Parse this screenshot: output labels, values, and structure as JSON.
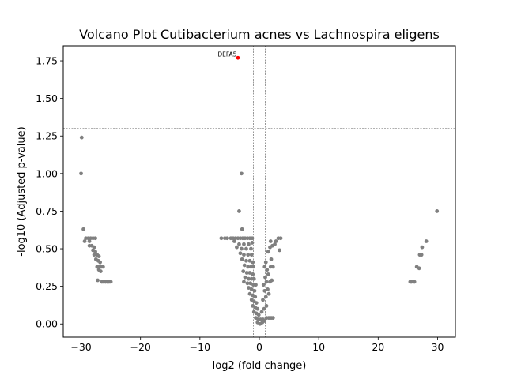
{
  "chart_data": {
    "type": "scatter",
    "title": "Volcano Plot Cutibacterium acnes vs Lachnospira eligens",
    "xlabel": "log2 (fold change)",
    "ylabel": "-log10 (Adjusted p-value)",
    "xlim": [
      -33,
      33
    ],
    "ylim": [
      -0.088,
      1.85
    ],
    "xticks": [
      -30,
      -20,
      -10,
      0,
      10,
      20,
      30
    ],
    "xtick_labels": [
      "−30",
      "−20",
      "−10",
      "0",
      "10",
      "20",
      "30"
    ],
    "yticks": [
      0.0,
      0.25,
      0.5,
      0.75,
      1.0,
      1.25,
      1.5,
      1.75
    ],
    "ytick_labels": [
      "0.00",
      "0.25",
      "0.50",
      "0.75",
      "1.00",
      "1.25",
      "1.50",
      "1.75"
    ],
    "grid": false,
    "colors": {
      "default": "#808080",
      "significant": "#ff0000",
      "threshold_line": "#808080"
    },
    "threshold_lines": {
      "vertical": [
        -1,
        1
      ],
      "horizontal": [
        1.3
      ]
    },
    "series": [
      {
        "color": "#808080",
        "points": [
          [
            -29.9,
            1.24
          ],
          [
            -30.0,
            1.0
          ],
          [
            -29.6,
            0.63
          ],
          [
            -29.2,
            0.57
          ],
          [
            -28.8,
            0.57
          ],
          [
            -28.4,
            0.57
          ],
          [
            -28.0,
            0.57
          ],
          [
            -27.6,
            0.57
          ],
          [
            -29.4,
            0.55
          ],
          [
            -28.6,
            0.55
          ],
          [
            -28.6,
            0.52
          ],
          [
            -28.2,
            0.52
          ],
          [
            -27.8,
            0.51
          ],
          [
            -28.0,
            0.49
          ],
          [
            -27.6,
            0.48
          ],
          [
            -27.8,
            0.46
          ],
          [
            -27.3,
            0.46
          ],
          [
            -27.0,
            0.45
          ],
          [
            -27.5,
            0.43
          ],
          [
            -27.1,
            0.42
          ],
          [
            -26.8,
            0.41
          ],
          [
            -27.3,
            0.38
          ],
          [
            -26.9,
            0.38
          ],
          [
            -26.6,
            0.38
          ],
          [
            -26.3,
            0.38
          ],
          [
            -27.0,
            0.36
          ],
          [
            -26.7,
            0.35
          ],
          [
            -27.2,
            0.29
          ],
          [
            -26.5,
            0.28
          ],
          [
            -26.2,
            0.28
          ],
          [
            -25.9,
            0.28
          ],
          [
            -25.6,
            0.28
          ],
          [
            -25.3,
            0.28
          ],
          [
            -25.0,
            0.28
          ],
          [
            -6.4,
            0.57
          ],
          [
            -5.8,
            0.57
          ],
          [
            -5.4,
            0.57
          ],
          [
            -4.8,
            0.57
          ],
          [
            -4.4,
            0.57
          ],
          [
            -4.0,
            0.57
          ],
          [
            -3.6,
            0.57
          ],
          [
            -3.2,
            0.57
          ],
          [
            -2.8,
            0.57
          ],
          [
            -2.4,
            0.57
          ],
          [
            -2.0,
            0.57
          ],
          [
            -1.6,
            0.57
          ],
          [
            -1.2,
            0.57
          ],
          [
            -3.0,
            1.0
          ],
          [
            -3.4,
            0.75
          ],
          [
            -2.9,
            0.63
          ],
          [
            -4.2,
            0.55
          ],
          [
            -3.4,
            0.53
          ],
          [
            -2.6,
            0.53
          ],
          [
            -1.8,
            0.53
          ],
          [
            -1.2,
            0.54
          ],
          [
            -3.8,
            0.51
          ],
          [
            -3.0,
            0.5
          ],
          [
            -2.2,
            0.5
          ],
          [
            -1.4,
            0.5
          ],
          [
            -3.2,
            0.47
          ],
          [
            -2.6,
            0.46
          ],
          [
            -1.9,
            0.46
          ],
          [
            -1.3,
            0.46
          ],
          [
            -2.9,
            0.43
          ],
          [
            -2.2,
            0.42
          ],
          [
            -1.6,
            0.42
          ],
          [
            -1.1,
            0.41
          ],
          [
            -2.5,
            0.39
          ],
          [
            -1.9,
            0.38
          ],
          [
            -1.4,
            0.38
          ],
          [
            -1.0,
            0.38
          ],
          [
            -2.7,
            0.35
          ],
          [
            -2.1,
            0.34
          ],
          [
            -1.6,
            0.34
          ],
          [
            -1.1,
            0.33
          ],
          [
            -2.4,
            0.31
          ],
          [
            -1.8,
            0.3
          ],
          [
            -1.3,
            0.3
          ],
          [
            -0.9,
            0.3
          ],
          [
            -2.6,
            0.28
          ],
          [
            -2.0,
            0.27
          ],
          [
            -1.5,
            0.27
          ],
          [
            -1.0,
            0.26
          ],
          [
            -0.6,
            0.26
          ],
          [
            -1.8,
            0.24
          ],
          [
            -1.3,
            0.23
          ],
          [
            -0.8,
            0.22
          ],
          [
            -1.6,
            0.2
          ],
          [
            -1.1,
            0.19
          ],
          [
            -0.7,
            0.18
          ],
          [
            -1.3,
            0.16
          ],
          [
            -0.9,
            0.15
          ],
          [
            -0.5,
            0.14
          ],
          [
            -1.1,
            0.12
          ],
          [
            -0.7,
            0.11
          ],
          [
            -0.3,
            0.1
          ],
          [
            -0.9,
            0.08
          ],
          [
            -0.5,
            0.07
          ],
          [
            -0.1,
            0.06
          ],
          [
            -0.6,
            0.04
          ],
          [
            -0.2,
            0.03
          ],
          [
            0.2,
            0.03
          ],
          [
            0.6,
            0.03
          ],
          [
            -0.3,
            0.01
          ],
          [
            0.1,
            0.0
          ],
          [
            0.5,
            0.01
          ],
          [
            0.9,
            0.02
          ],
          [
            1.2,
            0.04
          ],
          [
            1.6,
            0.04
          ],
          [
            2.0,
            0.04
          ],
          [
            2.3,
            0.04
          ],
          [
            0.4,
            0.08
          ],
          [
            0.8,
            0.1
          ],
          [
            1.2,
            0.12
          ],
          [
            0.6,
            0.16
          ],
          [
            1.1,
            0.18
          ],
          [
            1.6,
            0.2
          ],
          [
            0.9,
            0.22
          ],
          [
            1.4,
            0.23
          ],
          [
            0.7,
            0.26
          ],
          [
            1.2,
            0.28
          ],
          [
            1.8,
            0.28
          ],
          [
            2.1,
            0.29
          ],
          [
            1.0,
            0.31
          ],
          [
            1.5,
            0.33
          ],
          [
            1.3,
            0.36
          ],
          [
            0.9,
            0.38
          ],
          [
            1.9,
            0.38
          ],
          [
            2.3,
            0.38
          ],
          [
            1.1,
            0.41
          ],
          [
            2.0,
            0.43
          ],
          [
            1.5,
            0.48
          ],
          [
            1.8,
            0.51
          ],
          [
            2.2,
            0.52
          ],
          [
            1.9,
            0.55
          ],
          [
            2.8,
            0.55
          ],
          [
            3.2,
            0.57
          ],
          [
            3.6,
            0.57
          ],
          [
            2.6,
            0.53
          ],
          [
            3.4,
            0.49
          ],
          [
            29.9,
            0.75
          ],
          [
            28.1,
            0.55
          ],
          [
            27.4,
            0.51
          ],
          [
            27.0,
            0.46
          ],
          [
            27.3,
            0.46
          ],
          [
            26.5,
            0.38
          ],
          [
            26.9,
            0.37
          ],
          [
            25.4,
            0.28
          ],
          [
            25.6,
            0.28
          ],
          [
            26.1,
            0.28
          ]
        ]
      },
      {
        "color": "#ff0000",
        "points": [
          [
            -3.6,
            1.77
          ]
        ],
        "labels": [
          "DEFA5"
        ]
      }
    ]
  }
}
